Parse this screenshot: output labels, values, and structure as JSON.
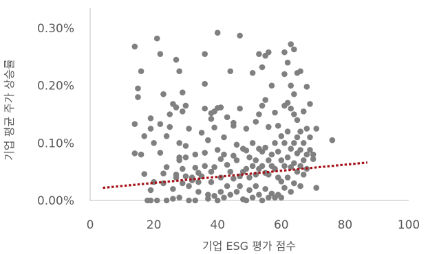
{
  "chart_data": {
    "type": "scatter",
    "xlabel": "기업 ESG 평가 점수",
    "ylabel": "기업 평균 주가 상승률",
    "xlim": [
      0,
      100
    ],
    "ylim": [
      0,
      0.3
    ],
    "x_ticks": [
      0,
      20,
      40,
      60,
      80,
      100
    ],
    "x_tick_labels": [
      "0",
      "20",
      "40",
      "60",
      "80",
      "100"
    ],
    "y_ticks": [
      0,
      0.1,
      0.2,
      0.3
    ],
    "y_tick_labels": [
      "0.00%",
      "0.10%",
      "0.20%",
      "0.30%"
    ],
    "grid": false,
    "legend": "none",
    "marker_color": "#808080",
    "trendline": {
      "type": "linear",
      "style": "dotted",
      "color": "#a50f15",
      "points": [
        [
          4,
          0.022
        ],
        [
          87,
          0.066
        ]
      ]
    },
    "points": [
      [
        14,
        0.268
      ],
      [
        14,
        0.133
      ],
      [
        14,
        0.082
      ],
      [
        15,
        0.18
      ],
      [
        15,
        0.195
      ],
      [
        16,
        0.225
      ],
      [
        16,
        0.08
      ],
      [
        17,
        0.112
      ],
      [
        17,
        0.046
      ],
      [
        18,
        0.0
      ],
      [
        19,
        0.0
      ],
      [
        19,
        0.018
      ],
      [
        19,
        0.125
      ],
      [
        19,
        0.143
      ],
      [
        20,
        0.1
      ],
      [
        20,
        0.032
      ],
      [
        21,
        0.282
      ],
      [
        21,
        0.0
      ],
      [
        22,
        0.255
      ],
      [
        22,
        0.133
      ],
      [
        22,
        0.083
      ],
      [
        23,
        0.185
      ],
      [
        23,
        0.047
      ],
      [
        23,
        0.03
      ],
      [
        24,
        0.058
      ],
      [
        24,
        0.0
      ],
      [
        24,
        0.112
      ],
      [
        25,
        0.15
      ],
      [
        25,
        0.128
      ],
      [
        26,
        0.168
      ],
      [
        26,
        0.02
      ],
      [
        26,
        0.003
      ],
      [
        27,
        0.245
      ],
      [
        27,
        0.162
      ],
      [
        27,
        0.04
      ],
      [
        27,
        0.045
      ],
      [
        28,
        0.225
      ],
      [
        28,
        0.005
      ],
      [
        28,
        0.07
      ],
      [
        28,
        0.075
      ],
      [
        28,
        0.1
      ],
      [
        29,
        0.155
      ],
      [
        29,
        0.188
      ],
      [
        29,
        0.055
      ],
      [
        29,
        0.03
      ],
      [
        30,
        0.165
      ],
      [
        30,
        0.095
      ],
      [
        30,
        0.075
      ],
      [
        30,
        0.042
      ],
      [
        31,
        0.125
      ],
      [
        31,
        0.025
      ],
      [
        31,
        0.0
      ],
      [
        32,
        0.04
      ],
      [
        32,
        0.035
      ],
      [
        33,
        0.08
      ],
      [
        33,
        0.0
      ],
      [
        33,
        0.057
      ],
      [
        34,
        0.048
      ],
      [
        34,
        0.032
      ],
      [
        34,
        0.015
      ],
      [
        35,
        0.118
      ],
      [
        35,
        0.042
      ],
      [
        36,
        0.255
      ],
      [
        36,
        0.203
      ],
      [
        36,
        0.16
      ],
      [
        36,
        0.083
      ],
      [
        36,
        0.06
      ],
      [
        37,
        0.003
      ],
      [
        37,
        0.105
      ],
      [
        37,
        0.01
      ],
      [
        38,
        0.152
      ],
      [
        38,
        0.142
      ],
      [
        38,
        0.05
      ],
      [
        38,
        0.032
      ],
      [
        39,
        0.155
      ],
      [
        39,
        0.127
      ],
      [
        39,
        0.058
      ],
      [
        39,
        0.008
      ],
      [
        40,
        0.292
      ],
      [
        40,
        0.161
      ],
      [
        40,
        0.088
      ],
      [
        40,
        0.0
      ],
      [
        41,
        0.162
      ],
      [
        41,
        0.072
      ],
      [
        41,
        0.04
      ],
      [
        41,
        0.015
      ],
      [
        42,
        0.11
      ],
      [
        42,
        0.08
      ],
      [
        42,
        0.005
      ],
      [
        43,
        0.145
      ],
      [
        43,
        0.062
      ],
      [
        43,
        0.025
      ],
      [
        44,
        0.225
      ],
      [
        44,
        0.05
      ],
      [
        44,
        0.01
      ],
      [
        45,
        0.135
      ],
      [
        45,
        0.13
      ],
      [
        45,
        0.078
      ],
      [
        45,
        0.038
      ],
      [
        46,
        0.097
      ],
      [
        46,
        0.07
      ],
      [
        46,
        0.015
      ],
      [
        47,
        0.287
      ],
      [
        47,
        0.16
      ],
      [
        47,
        0.042
      ],
      [
        47,
        0.025
      ],
      [
        48,
        0.09
      ],
      [
        48,
        0.05
      ],
      [
        48,
        0.002
      ],
      [
        49,
        0.125
      ],
      [
        49,
        0.087
      ],
      [
        49,
        0.055
      ],
      [
        49,
        0.0
      ],
      [
        50,
        0.075
      ],
      [
        50,
        0.04
      ],
      [
        50,
        0.018
      ],
      [
        51,
        0.222
      ],
      [
        51,
        0.1
      ],
      [
        51,
        0.06
      ],
      [
        51,
        0.005
      ],
      [
        52,
        0.137
      ],
      [
        52,
        0.07
      ],
      [
        52,
        0.045
      ],
      [
        52,
        0.025
      ],
      [
        53,
        0.255
      ],
      [
        53,
        0.15
      ],
      [
        53,
        0.09
      ],
      [
        53,
        0.055
      ],
      [
        53,
        0.01
      ],
      [
        54,
        0.232
      ],
      [
        54,
        0.165
      ],
      [
        54,
        0.085
      ],
      [
        54,
        0.06
      ],
      [
        54,
        0.0
      ],
      [
        55,
        0.252
      ],
      [
        55,
        0.175
      ],
      [
        55,
        0.092
      ],
      [
        55,
        0.048
      ],
      [
        55,
        0.02
      ],
      [
        56,
        0.258
      ],
      [
        56,
        0.128
      ],
      [
        56,
        0.07
      ],
      [
        56,
        0.045
      ],
      [
        56,
        0.005
      ],
      [
        57,
        0.2
      ],
      [
        57,
        0.08
      ],
      [
        57,
        0.06
      ],
      [
        57,
        0.012
      ],
      [
        58,
        0.153
      ],
      [
        58,
        0.1
      ],
      [
        58,
        0.055
      ],
      [
        58,
        0.005
      ],
      [
        59,
        0.13
      ],
      [
        59,
        0.085
      ],
      [
        59,
        0.04
      ],
      [
        59,
        0.01
      ],
      [
        60,
        0.112
      ],
      [
        60,
        0.07
      ],
      [
        60,
        0.033
      ],
      [
        60,
        0.005
      ],
      [
        61,
        0.258
      ],
      [
        61,
        0.22
      ],
      [
        61,
        0.165
      ],
      [
        61,
        0.1
      ],
      [
        61,
        0.06
      ],
      [
        61,
        0.022
      ],
      [
        62,
        0.24
      ],
      [
        62,
        0.17
      ],
      [
        62,
        0.12
      ],
      [
        62,
        0.075
      ],
      [
        62,
        0.04
      ],
      [
        63,
        0.272
      ],
      [
        63,
        0.2
      ],
      [
        63,
        0.16
      ],
      [
        63,
        0.09
      ],
      [
        63,
        0.058
      ],
      [
        63,
        0.015
      ],
      [
        64,
        0.263
      ],
      [
        64,
        0.185
      ],
      [
        64,
        0.15
      ],
      [
        64,
        0.1
      ],
      [
        64,
        0.065
      ],
      [
        64,
        0.03
      ],
      [
        65,
        0.222
      ],
      [
        65,
        0.14
      ],
      [
        65,
        0.11
      ],
      [
        65,
        0.082
      ],
      [
        65,
        0.05
      ],
      [
        66,
        0.225
      ],
      [
        66,
        0.12
      ],
      [
        66,
        0.088
      ],
      [
        66,
        0.06
      ],
      [
        66,
        0.025
      ],
      [
        67,
        0.155
      ],
      [
        67,
        0.1
      ],
      [
        67,
        0.07
      ],
      [
        67,
        0.045
      ],
      [
        68,
        0.198
      ],
      [
        68,
        0.125
      ],
      [
        68,
        0.08
      ],
      [
        68,
        0.055
      ],
      [
        69,
        0.168
      ],
      [
        69,
        0.11
      ],
      [
        69,
        0.088
      ],
      [
        70,
        0.08
      ],
      [
        70,
        0.072
      ],
      [
        71,
        0.125
      ],
      [
        71,
        0.022
      ],
      [
        76,
        0.105
      ]
    ]
  }
}
